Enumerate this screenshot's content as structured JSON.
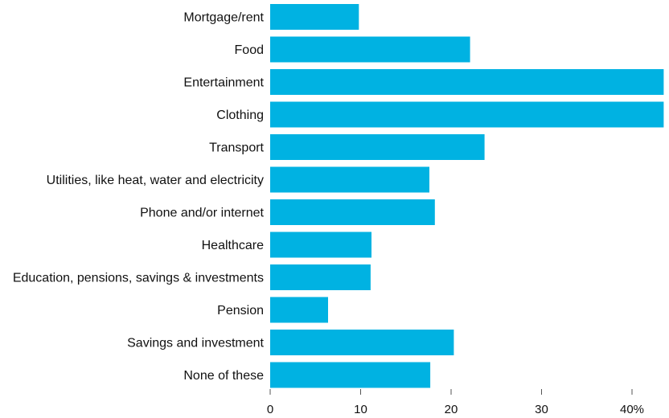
{
  "chart_data": {
    "type": "bar",
    "orientation": "horizontal",
    "categories": [
      "Mortgage/rent",
      "Food",
      "Entertainment",
      "Clothing",
      "Transport",
      "Utilities, like heat, water and electricity",
      "Phone and/or internet",
      "Healthcare",
      "Education, pensions, savings & investments",
      "Pension",
      "Savings and investment",
      "None of these"
    ],
    "values": [
      9.8,
      22.1,
      43.5,
      43.5,
      23.7,
      17.6,
      18.2,
      11.2,
      11.1,
      6.4,
      20.3,
      17.7
    ],
    "xticks": [
      "0",
      "10",
      "20",
      "30",
      "40%"
    ],
    "xlim": [
      0,
      43.5
    ],
    "bar_color": "#00b2e2",
    "grid": false
  }
}
